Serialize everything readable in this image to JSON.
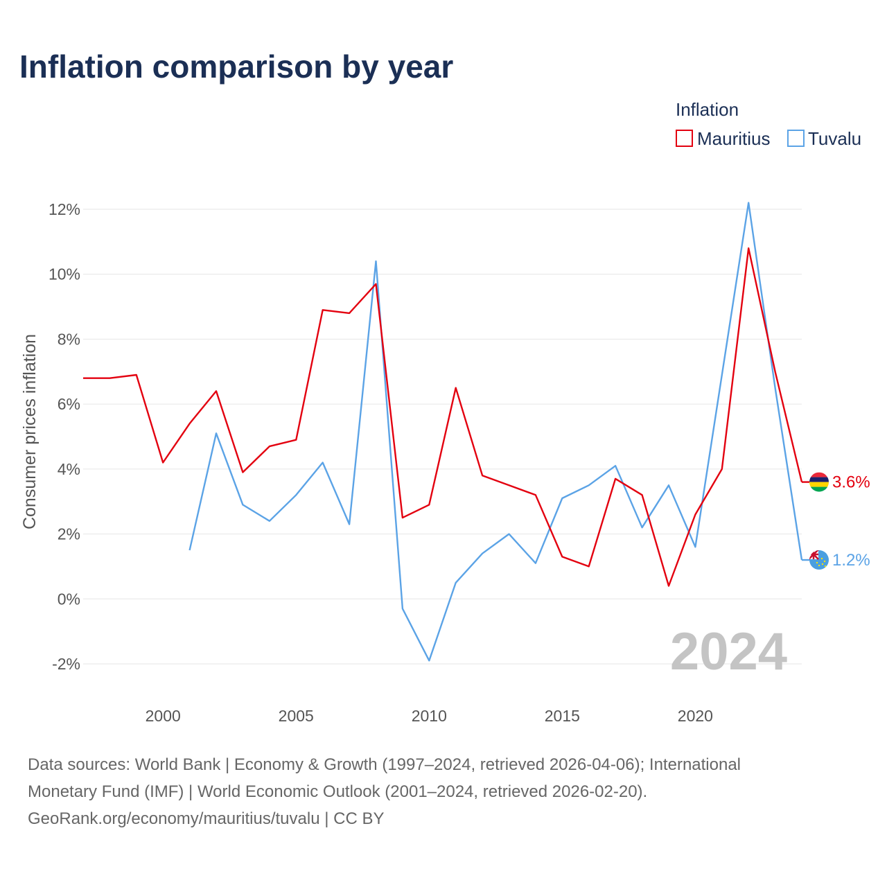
{
  "title": "Inflation comparison by year",
  "legend": {
    "title": "Inflation",
    "items": [
      {
        "label": "Mauritius",
        "color": "#e3000f"
      },
      {
        "label": "Tuvalu",
        "color": "#5ba3e6"
      }
    ]
  },
  "watermark_year": "2024",
  "footer": {
    "line1": "Data sources: World Bank | Economy & Growth (1997–2024, retrieved 2026-04-06); International",
    "line2": "Monetary Fund (IMF) | World Economic Outlook (2001–2024, retrieved 2026-02-20).",
    "line3": "GeoRank.org/economy/mauritius/tuvalu | CC BY"
  },
  "chart_data": {
    "type": "line",
    "title": "Inflation comparison by year",
    "xlabel": "",
    "ylabel": "Consumer prices inflation",
    "xlim": [
      1997,
      2024
    ],
    "ylim": [
      -3,
      12.5
    ],
    "x_ticks": [
      2000,
      2005,
      2010,
      2015,
      2020
    ],
    "y_ticks": [
      -2,
      0,
      2,
      4,
      6,
      8,
      10,
      12
    ],
    "y_tick_labels": [
      "-2%",
      "0%",
      "2%",
      "4%",
      "6%",
      "8%",
      "10%",
      "12%"
    ],
    "grid": true,
    "series": [
      {
        "name": "Mauritius",
        "color": "#e3000f",
        "end_label": "3.6%",
        "x": [
          1997,
          1998,
          1999,
          2000,
          2001,
          2002,
          2003,
          2004,
          2005,
          2006,
          2007,
          2008,
          2009,
          2010,
          2011,
          2012,
          2013,
          2014,
          2015,
          2016,
          2017,
          2018,
          2019,
          2020,
          2021,
          2022,
          2023,
          2024
        ],
        "values": [
          6.8,
          6.8,
          6.9,
          4.2,
          5.4,
          6.4,
          3.9,
          4.7,
          4.9,
          8.9,
          8.8,
          9.7,
          2.5,
          2.9,
          6.5,
          3.8,
          3.5,
          3.2,
          1.3,
          1.0,
          3.7,
          3.2,
          0.4,
          2.6,
          4.0,
          10.8,
          7.0,
          3.6
        ]
      },
      {
        "name": "Tuvalu",
        "color": "#5ba3e6",
        "end_label": "1.2%",
        "x": [
          2001,
          2002,
          2003,
          2004,
          2005,
          2006,
          2007,
          2008,
          2009,
          2010,
          2011,
          2012,
          2013,
          2014,
          2015,
          2016,
          2017,
          2018,
          2019,
          2020,
          2021,
          2022,
          2023,
          2024
        ],
        "values": [
          1.5,
          5.1,
          2.9,
          2.4,
          3.2,
          4.2,
          2.3,
          10.4,
          -0.3,
          -1.9,
          0.5,
          1.4,
          2.0,
          1.1,
          3.1,
          3.5,
          4.1,
          2.2,
          3.5,
          1.6,
          6.9,
          12.2,
          6.5,
          1.2
        ]
      }
    ]
  }
}
